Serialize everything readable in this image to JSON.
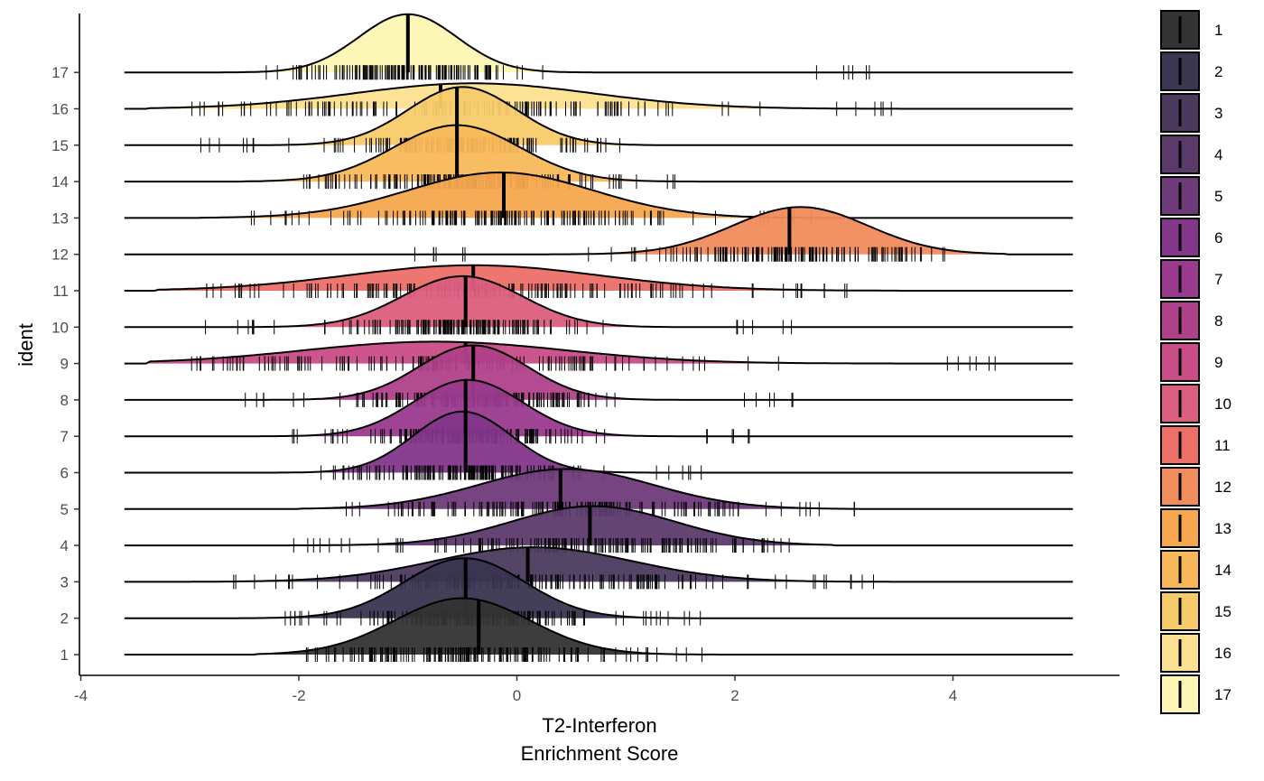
{
  "chart_data": {
    "type": "ridgeline",
    "xlabel_line1": "T2-Interferon",
    "xlabel_line2": "Enrichment Score",
    "ylabel": "ident",
    "xlim": [
      -4.0,
      5.5
    ],
    "x_ticks": [
      -4,
      -2,
      0,
      2,
      4
    ],
    "x_tick_labels": [
      "-4",
      "-2",
      "0",
      "2",
      "4"
    ],
    "grid": false,
    "legend_position": "right",
    "series": [
      {
        "name": "1",
        "color": "#333333",
        "median": -0.35,
        "peak_x": -0.5,
        "peak_height": 1.55,
        "sd": 0.62,
        "range": [
          -2.0,
          1.7
        ]
      },
      {
        "name": "2",
        "color": "#3a3550",
        "median": -0.47,
        "peak_x": -0.48,
        "peak_height": 1.65,
        "sd": 0.55,
        "range": [
          -2.25,
          1.75
        ]
      },
      {
        "name": "3",
        "color": "#4b3a5e",
        "median": 0.1,
        "peak_x": 0.15,
        "peak_height": 0.95,
        "sd": 0.9,
        "range": [
          -2.6,
          3.3
        ]
      },
      {
        "name": "4",
        "color": "#5b3a6b",
        "median": 0.67,
        "peak_x": 0.7,
        "peak_height": 1.08,
        "sd": 0.75,
        "range": [
          -2.1,
          2.5
        ]
      },
      {
        "name": "5",
        "color": "#6e3a7a",
        "median": 0.4,
        "peak_x": 0.45,
        "peak_height": 1.1,
        "sd": 0.8,
        "range": [
          -1.6,
          3.1
        ]
      },
      {
        "name": "6",
        "color": "#83368a",
        "median": -0.47,
        "peak_x": -0.5,
        "peak_height": 1.68,
        "sd": 0.45,
        "range": [
          -1.8,
          1.85
        ]
      },
      {
        "name": "7",
        "color": "#9a3a8e",
        "median": -0.47,
        "peak_x": -0.45,
        "peak_height": 1.55,
        "sd": 0.5,
        "range": [
          -2.2,
          2.15
        ]
      },
      {
        "name": "8",
        "color": "#b04089",
        "median": -0.4,
        "peak_x": -0.4,
        "peak_height": 1.5,
        "sd": 0.5,
        "range": [
          -2.5,
          2.6
        ]
      },
      {
        "name": "9",
        "color": "#c84c86",
        "median": -0.47,
        "peak_x": -0.75,
        "peak_height": 0.6,
        "sd": 1.2,
        "range": [
          -3.0,
          4.5
        ]
      },
      {
        "name": "10",
        "color": "#dc5e7e",
        "median": -0.47,
        "peak_x": -0.5,
        "peak_height": 1.4,
        "sd": 0.55,
        "range": [
          -3.0,
          2.6
        ]
      },
      {
        "name": "11",
        "color": "#ec7068",
        "median": -0.4,
        "peak_x": -0.4,
        "peak_height": 0.7,
        "sd": 1.15,
        "range": [
          -2.9,
          3.1
        ]
      },
      {
        "name": "12",
        "color": "#f18c5c",
        "median": 2.5,
        "peak_x": 2.6,
        "peak_height": 1.3,
        "sd": 0.62,
        "range": [
          -1.0,
          4.1
        ]
      },
      {
        "name": "13",
        "color": "#f6a64e",
        "median": -0.12,
        "peak_x": -0.15,
        "peak_height": 1.25,
        "sd": 0.85,
        "range": [
          -2.5,
          2.8
        ]
      },
      {
        "name": "14",
        "color": "#f8b85a",
        "median": -0.55,
        "peak_x": -0.55,
        "peak_height": 1.55,
        "sd": 0.58,
        "range": [
          -2.1,
          1.45
        ]
      },
      {
        "name": "15",
        "color": "#f8cb6a",
        "median": -0.55,
        "peak_x": -0.5,
        "peak_height": 1.6,
        "sd": 0.5,
        "range": [
          -2.95,
          0.95
        ]
      },
      {
        "name": "16",
        "color": "#fbe08f",
        "median": -0.7,
        "peak_x": -0.4,
        "peak_height": 0.7,
        "sd": 1.1,
        "range": [
          -3.0,
          3.45
        ]
      },
      {
        "name": "17",
        "color": "#fdf7b3",
        "median": -1.0,
        "peak_x": -1.0,
        "peak_height": 1.6,
        "sd": 0.45,
        "range": [
          -2.4,
          3.3
        ]
      }
    ]
  }
}
